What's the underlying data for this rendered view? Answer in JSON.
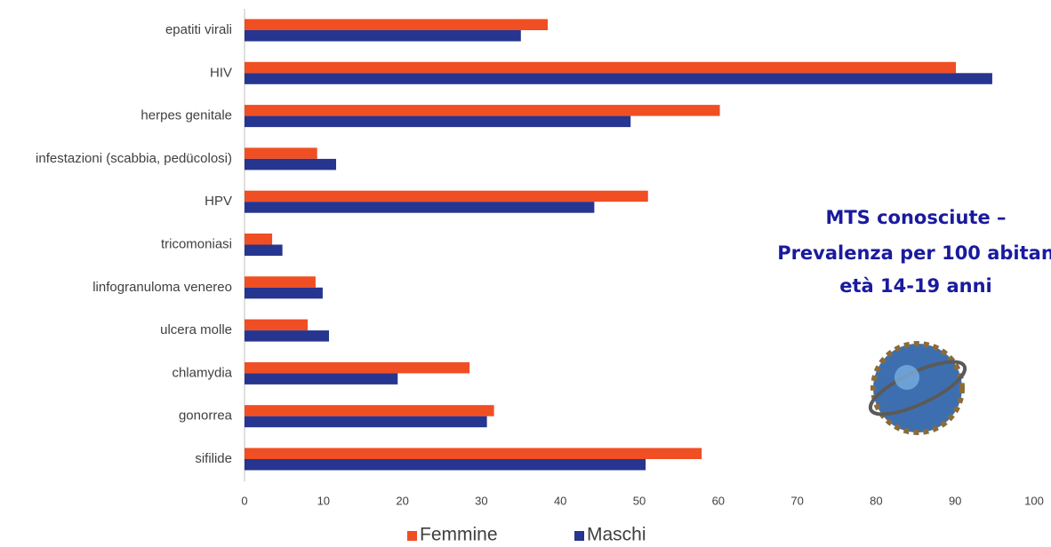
{
  "chart_data": {
    "type": "bar",
    "orientation": "horizontal",
    "title_lines": [
      "MTS conosciute –",
      "Prevalenza per 100 abitan",
      "età 14-19 anni"
    ],
    "categories": [
      "epatiti virali",
      "HIV",
      "herpes genitale",
      "infestazioni (scabbia, pedücolosi)",
      "HPV",
      "tricomoniasi",
      "linfogranuloma venereo",
      "ulcera molle",
      "chlamydia",
      "gonorrea",
      "sifilide"
    ],
    "series": [
      {
        "name": "Femmine",
        "color": "#f04e23",
        "values": [
          38.4,
          90.1,
          60.2,
          9.2,
          51.1,
          3.5,
          9.0,
          8.0,
          28.5,
          31.6,
          57.9
        ]
      },
      {
        "name": "Maschi",
        "color": "#26358f",
        "values": [
          35.0,
          94.7,
          48.9,
          11.6,
          44.3,
          4.8,
          9.9,
          10.7,
          19.4,
          30.7,
          50.8
        ]
      }
    ],
    "xlim": [
      0,
      100
    ],
    "xticks": [
      0,
      10,
      20,
      30,
      40,
      50,
      60,
      70,
      80,
      90,
      100
    ],
    "grid": false,
    "legend": "bottom"
  }
}
